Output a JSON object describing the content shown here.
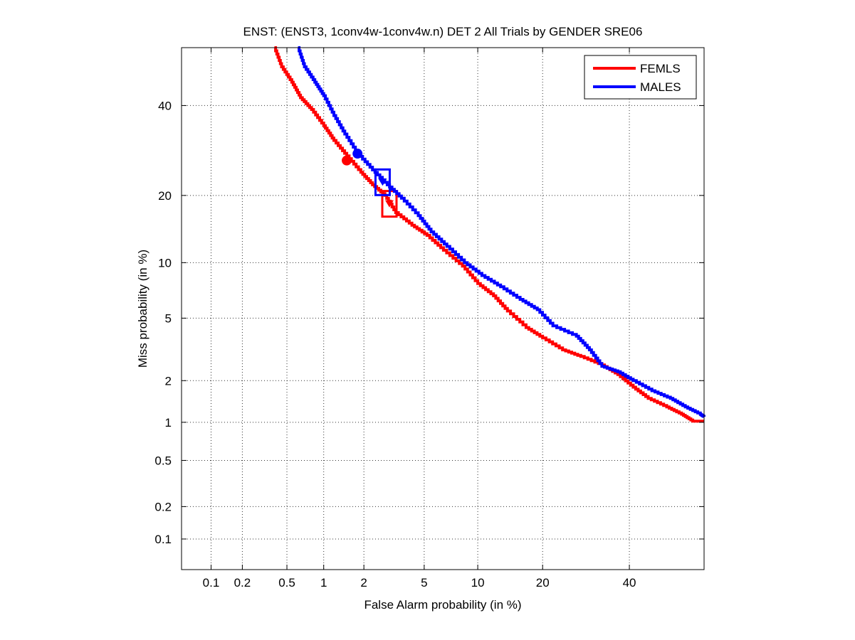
{
  "chart_data": {
    "type": "line",
    "title": "ENST: (ENST3, 1conv4w-1conv4w.n) DET 2 All Trials by GENDER SRE06",
    "xlabel": "False Alarm probability (in %)",
    "ylabel": "Miss probability (in %)",
    "scale": "normal-deviate (probit) on both axes",
    "grid": true,
    "legend_position": "top-right",
    "xlim": [
      0.05,
      60
    ],
    "ylim": [
      0.05,
      55
    ],
    "xticks": [
      0.1,
      0.2,
      0.5,
      1,
      2,
      5,
      10,
      20,
      40
    ],
    "xtick_labels": [
      "0.1",
      "0.2",
      "0.5",
      "1",
      "2",
      "5",
      "10",
      "20",
      "40"
    ],
    "yticks": [
      0.1,
      0.2,
      0.5,
      1,
      2,
      5,
      10,
      20,
      40
    ],
    "ytick_labels": [
      "0.1",
      "0.2",
      "0.5",
      "1",
      "2",
      "5",
      "10",
      "20",
      "40"
    ],
    "series": [
      {
        "name": "FEMLS",
        "color": "#ff0000",
        "points": [
          [
            0.39,
            55
          ],
          [
            0.45,
            50
          ],
          [
            0.55,
            46
          ],
          [
            0.65,
            42
          ],
          [
            0.8,
            39
          ],
          [
            1.0,
            35
          ],
          [
            1.2,
            31.5
          ],
          [
            1.5,
            28
          ],
          [
            1.9,
            24.5
          ],
          [
            2.3,
            22
          ],
          [
            2.8,
            20
          ],
          [
            3.3,
            17
          ],
          [
            4.2,
            15
          ],
          [
            5.2,
            13.5
          ],
          [
            6.5,
            11.5
          ],
          [
            8.3,
            9.6
          ],
          [
            10,
            7.8
          ],
          [
            12,
            6.7
          ],
          [
            14,
            5.5
          ],
          [
            17,
            4.4
          ],
          [
            20,
            3.8
          ],
          [
            24,
            3.2
          ],
          [
            28,
            2.9
          ],
          [
            33,
            2.55
          ],
          [
            37,
            2.2
          ],
          [
            41,
            1.8
          ],
          [
            45,
            1.5
          ],
          [
            50,
            1.3
          ],
          [
            54,
            1.15
          ],
          [
            57,
            1.02
          ],
          [
            60,
            1.02
          ]
        ],
        "min_dcf": [
          1.5,
          27
        ],
        "actual_dcf": [
          3.0,
          18.5
        ]
      },
      {
        "name": "MALES",
        "color": "#0000ff",
        "points": [
          [
            0.62,
            55
          ],
          [
            0.7,
            50
          ],
          [
            0.85,
            46
          ],
          [
            1.0,
            42.5
          ],
          [
            1.2,
            37.5
          ],
          [
            1.45,
            33
          ],
          [
            1.8,
            28.5
          ],
          [
            2.3,
            25
          ],
          [
            2.9,
            22
          ],
          [
            3.6,
            19.5
          ],
          [
            4.6,
            16.5
          ],
          [
            5.5,
            14
          ],
          [
            6.8,
            12
          ],
          [
            8.5,
            10
          ],
          [
            10.5,
            8.6
          ],
          [
            13,
            7.5
          ],
          [
            16,
            6.4
          ],
          [
            19,
            5.6
          ],
          [
            22,
            4.5
          ],
          [
            27,
            3.9
          ],
          [
            30,
            3.2
          ],
          [
            33,
            2.5
          ],
          [
            37,
            2.3
          ],
          [
            41,
            2.0
          ],
          [
            46,
            1.7
          ],
          [
            51,
            1.5
          ],
          [
            55,
            1.3
          ],
          [
            59,
            1.15
          ],
          [
            60,
            1.1
          ]
        ],
        "min_dcf": [
          1.8,
          28.5
        ],
        "actual_dcf": [
          2.7,
          22.5
        ]
      }
    ]
  }
}
